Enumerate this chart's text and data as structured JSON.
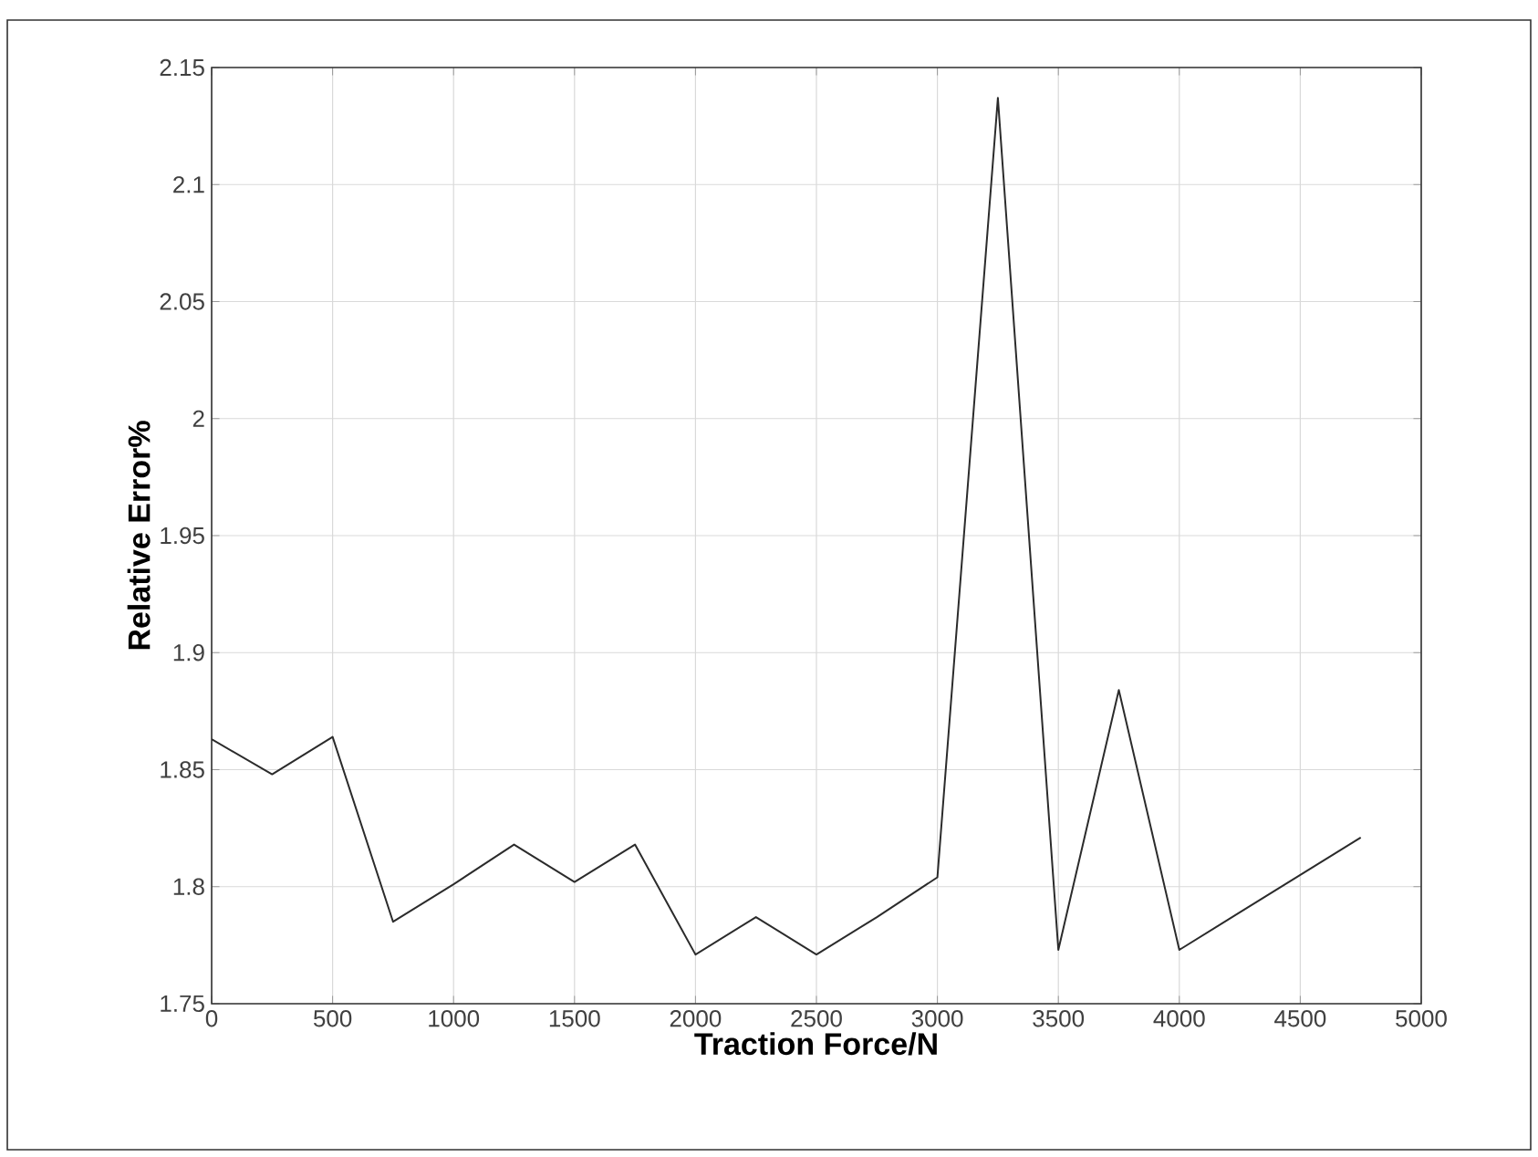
{
  "chart_data": {
    "type": "line",
    "xlabel": "Traction Force/N",
    "ylabel": "Relative Error%",
    "x": [
      0,
      250,
      500,
      750,
      1000,
      1250,
      1500,
      1750,
      2000,
      2250,
      2500,
      2750,
      3000,
      3250,
      3500,
      3750,
      4000,
      4250,
      4500,
      4750
    ],
    "series": [
      {
        "color": "#2b2b2b",
        "values": [
          1.863,
          1.848,
          1.864,
          1.785,
          1.801,
          1.818,
          1.802,
          1.818,
          1.771,
          1.787,
          1.771,
          1.787,
          1.804,
          2.137,
          1.773,
          1.884,
          1.773,
          1.789,
          1.805,
          1.821
        ]
      }
    ],
    "xlim": [
      0,
      5000
    ],
    "xticks": [
      0,
      500,
      1000,
      1500,
      2000,
      2500,
      3000,
      3500,
      4000,
      4500,
      5000
    ],
    "ylim": [
      1.75,
      2.15
    ],
    "yticks": [
      1.75,
      1.8,
      1.85,
      1.9,
      1.95,
      2,
      2.05,
      2.1,
      2.15
    ],
    "grid": true,
    "marker": "none",
    "line_style": "solid"
  }
}
